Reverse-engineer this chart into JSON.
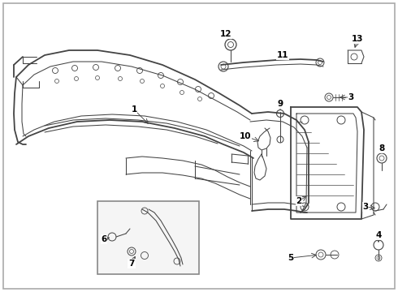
{
  "background_color": "#ffffff",
  "line_color": "#444444",
  "label_color": "#000000",
  "fig_width": 4.9,
  "fig_height": 3.6,
  "dpi": 100
}
